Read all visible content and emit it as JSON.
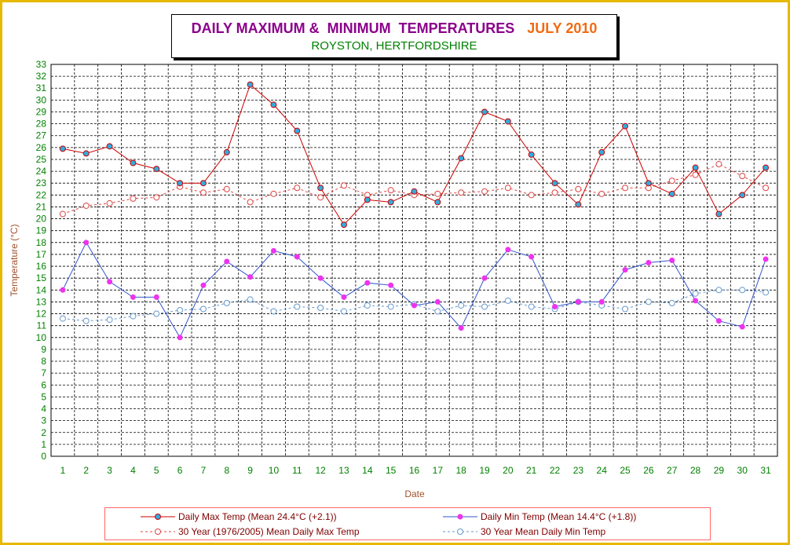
{
  "title": {
    "main": "DAILY MAXIMUM &  MINIMUM  TEMPERATURES",
    "month": "JULY 2010",
    "location": "ROYSTON, HERTFORDSHIRE"
  },
  "colors": {
    "frame": "#e6b800",
    "title_main": "#8b008b",
    "title_month": "#f26a10",
    "location": "#008000",
    "tick_labels": "#008000",
    "axis_titles": "#a0522d",
    "max_line": "#cc0000",
    "max_marker": "#33aadd",
    "min_line": "#3355cc",
    "min_marker": "#ee33ee",
    "normal_max": "#dd4444",
    "normal_min": "#6699cc"
  },
  "chart_data": {
    "type": "line",
    "title": "DAILY MAXIMUM &  MINIMUM  TEMPERATURES  JULY 2010",
    "subtitle": "ROYSTON, HERTFORDSHIRE",
    "xlabel": "Date",
    "ylabel": "Temperature (°C)",
    "ylim": [
      0,
      33
    ],
    "grid": true,
    "legend_position": "bottom",
    "x": [
      1,
      2,
      3,
      4,
      5,
      6,
      7,
      8,
      9,
      10,
      11,
      12,
      13,
      14,
      15,
      16,
      17,
      18,
      19,
      20,
      21,
      22,
      23,
      24,
      25,
      26,
      27,
      28,
      29,
      30,
      31
    ],
    "yticks": [
      0,
      1,
      2,
      3,
      4,
      5,
      6,
      7,
      8,
      9,
      10,
      11,
      12,
      13,
      14,
      15,
      16,
      17,
      18,
      19,
      20,
      21,
      22,
      23,
      24,
      25,
      26,
      27,
      28,
      29,
      30,
      31,
      32,
      33
    ],
    "series": [
      {
        "name": "Daily Max Temp (Mean 24.4°C (+2.1))",
        "style": "solid",
        "color": "#cc0000",
        "values": [
          25.9,
          25.5,
          26.1,
          24.7,
          24.2,
          23.0,
          23.0,
          25.6,
          31.3,
          29.6,
          27.4,
          22.6,
          19.5,
          21.6,
          21.4,
          22.3,
          21.4,
          25.1,
          29.0,
          28.2,
          25.4,
          23.0,
          21.2,
          25.6,
          27.8,
          23.0,
          22.1,
          24.3,
          20.4,
          22.0,
          24.3
        ]
      },
      {
        "name": "Daily Min Temp (Mean 14.4°C (+1.8))",
        "style": "solid",
        "color": "#3355cc",
        "values": [
          14.0,
          18.0,
          14.7,
          13.4,
          13.4,
          10.0,
          14.4,
          16.4,
          15.1,
          17.3,
          16.8,
          15.0,
          13.4,
          14.6,
          14.4,
          12.7,
          13.0,
          10.8,
          15.0,
          17.4,
          16.8,
          12.6,
          13.0,
          13.0,
          15.7,
          16.3,
          16.5,
          13.1,
          11.4,
          10.9,
          16.6
        ]
      },
      {
        "name": "30 Year (1976/2005) Mean Daily Max Temp",
        "style": "dashed",
        "color": "#dd4444",
        "values": [
          20.4,
          21.1,
          21.3,
          21.7,
          21.8,
          22.7,
          22.2,
          22.5,
          21.4,
          22.1,
          22.6,
          21.8,
          22.8,
          22.0,
          22.4,
          22.0,
          22.1,
          22.2,
          22.3,
          22.6,
          22.0,
          22.2,
          22.5,
          22.1,
          22.6,
          22.6,
          23.2,
          23.7,
          24.6,
          23.6,
          22.6
        ]
      },
      {
        "name": "30 Year Mean Daily Min Temp",
        "style": "dashed",
        "color": "#6699cc",
        "values": [
          11.6,
          11.4,
          11.5,
          11.8,
          12.0,
          12.3,
          12.4,
          12.9,
          13.2,
          12.2,
          12.6,
          12.5,
          12.2,
          12.7,
          12.6,
          12.8,
          12.2,
          12.7,
          12.6,
          13.1,
          12.6,
          12.4,
          13.0,
          12.7,
          12.4,
          13.0,
          12.9,
          13.7,
          14.0,
          14.0,
          13.8
        ]
      }
    ]
  }
}
